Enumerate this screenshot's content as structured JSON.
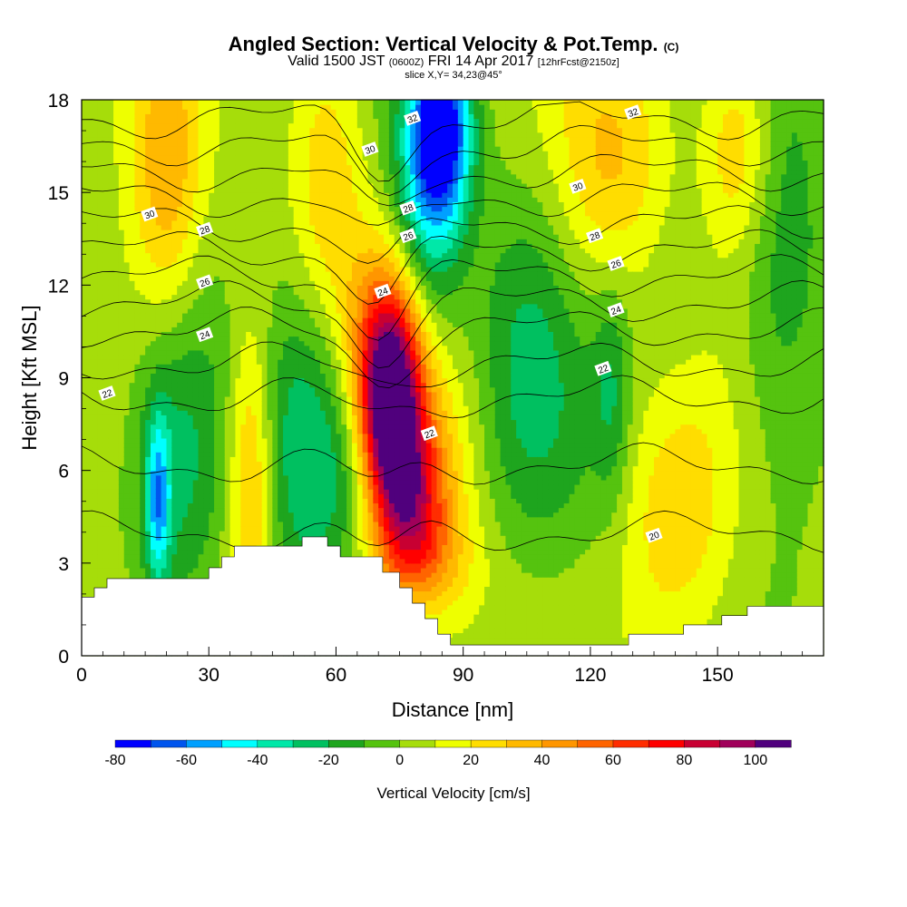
{
  "header": {
    "title_main": "Angled Section: Vertical Velocity & Pot.Temp.",
    "title_suffix": "(C)",
    "valid_prefix": "Valid 1500 JST",
    "valid_utc": "(0600Z)",
    "valid_date": "FRI 14 Apr 2017",
    "forecast": "[12hrFcst@2150z]",
    "slice": "slice X,Y= 34,23@45°"
  },
  "chart_data": {
    "type": "heatmap",
    "xlabel": "Distance [nm]",
    "ylabel": "Height [Kft MSL]",
    "xlim": [
      0,
      175
    ],
    "ylim": [
      0,
      18
    ],
    "x_ticks": [
      0,
      30,
      60,
      90,
      120,
      150
    ],
    "y_ticks": [
      0,
      3,
      6,
      9,
      12,
      15,
      18
    ],
    "colorbar": {
      "title": "Vertical Velocity [cm/s]",
      "levels": [
        -80,
        -70,
        -60,
        -50,
        -40,
        -30,
        -20,
        -10,
        0,
        10,
        20,
        30,
        40,
        50,
        60,
        70,
        80,
        90,
        100,
        110
      ],
      "tick_labels": [
        "-80",
        "-60",
        "-40",
        "-20",
        "0",
        "20",
        "40",
        "60",
        "80",
        "100"
      ],
      "colors": [
        "#0000ff",
        "#0055ee",
        "#00a0ff",
        "#00ffff",
        "#00e8a8",
        "#00c060",
        "#1ea51e",
        "#55c30f",
        "#a6dd0a",
        "#eeff00",
        "#ffdd00",
        "#ffb900",
        "#ff9600",
        "#ff6400",
        "#ff2d00",
        "#ff0000",
        "#c80032",
        "#a0005a",
        "#50007d"
      ]
    },
    "contour_variable": "Potential temperature [C]",
    "contour_labels": [
      {
        "value": "32",
        "x": 78,
        "y": 17.4
      },
      {
        "value": "32",
        "x": 130,
        "y": 17.6
      },
      {
        "value": "30",
        "x": 68,
        "y": 16.4
      },
      {
        "value": "30",
        "x": 16,
        "y": 14.3
      },
      {
        "value": "30",
        "x": 117,
        "y": 15.2
      },
      {
        "value": "28",
        "x": 77,
        "y": 14.5
      },
      {
        "value": "28",
        "x": 29,
        "y": 13.8
      },
      {
        "value": "28",
        "x": 121,
        "y": 13.6
      },
      {
        "value": "26",
        "x": 77,
        "y": 13.6
      },
      {
        "value": "26",
        "x": 126,
        "y": 12.7
      },
      {
        "value": "26",
        "x": 29,
        "y": 12.1
      },
      {
        "value": "24",
        "x": 71,
        "y": 11.8
      },
      {
        "value": "24",
        "x": 126,
        "y": 11.2
      },
      {
        "value": "24",
        "x": 29,
        "y": 10.4
      },
      {
        "value": "22",
        "x": 6,
        "y": 8.5
      },
      {
        "value": "22",
        "x": 123,
        "y": 9.3
      },
      {
        "value": "22",
        "x": 82,
        "y": 7.2
      },
      {
        "value": "20",
        "x": 135,
        "y": 3.9
      }
    ],
    "fields": [
      {
        "x": 73,
        "y": 8.0,
        "v": 105,
        "sx": 5,
        "sy": 2.4
      },
      {
        "x": 70,
        "y": 10.0,
        "v": 40,
        "sx": 7,
        "sy": 2.5
      },
      {
        "x": 78,
        "y": 5.0,
        "v": 55,
        "sx": 6,
        "sy": 1.8
      },
      {
        "x": 84,
        "y": 6.5,
        "v": 20,
        "sx": 8,
        "sy": 3.2
      },
      {
        "x": 78,
        "y": 3.0,
        "v": 25,
        "sx": 10,
        "sy": 1.2
      },
      {
        "x": 85,
        "y": 17.2,
        "v": -70,
        "sx": 5,
        "sy": 2.0
      },
      {
        "x": 82,
        "y": 15.0,
        "v": -45,
        "sx": 6,
        "sy": 3.0
      },
      {
        "x": 55,
        "y": 7.0,
        "v": -38,
        "sx": 11,
        "sy": 3.5
      },
      {
        "x": 22,
        "y": 6.0,
        "v": -28,
        "sx": 8,
        "sy": 4.0
      },
      {
        "x": 18,
        "y": 5.0,
        "v": -45,
        "sx": 2,
        "sy": 2.0
      },
      {
        "x": 40,
        "y": 6.0,
        "v": 40,
        "sx": 4,
        "sy": 3.5
      },
      {
        "x": 20,
        "y": 15.5,
        "v": 35,
        "sx": 6,
        "sy": 3.5
      },
      {
        "x": 58,
        "y": 15.5,
        "v": 25,
        "sx": 6,
        "sy": 3.5
      },
      {
        "x": 125,
        "y": 16.0,
        "v": 28,
        "sx": 10,
        "sy": 3.0
      },
      {
        "x": 155,
        "y": 16.5,
        "v": 30,
        "sx": 6,
        "sy": 2.5
      },
      {
        "x": 140,
        "y": 5.0,
        "v": 30,
        "sx": 10,
        "sy": 3.5
      },
      {
        "x": 115,
        "y": 6.5,
        "v": -12,
        "sx": 15,
        "sy": 3.5
      },
      {
        "x": 125,
        "y": 8.5,
        "v": -20,
        "sx": 3,
        "sy": 2.5
      },
      {
        "x": 105,
        "y": 10.0,
        "v": -18,
        "sx": 8,
        "sy": 4.0
      },
      {
        "x": 165,
        "y": 13.0,
        "v": -22,
        "sx": 8,
        "sy": 5.0
      },
      {
        "x": 140,
        "y": 10.5,
        "v": -10,
        "sx": 8,
        "sy": 4.0
      },
      {
        "x": 10,
        "y": 9.0,
        "v": 8,
        "sx": 10,
        "sy": 3.0
      }
    ],
    "terrain_kft": [
      [
        0,
        1.9
      ],
      [
        3,
        1.9
      ],
      [
        3,
        2.2
      ],
      [
        6,
        2.2
      ],
      [
        6,
        2.5
      ],
      [
        30,
        2.5
      ],
      [
        30,
        2.85
      ],
      [
        33,
        2.85
      ],
      [
        33,
        3.2
      ],
      [
        36,
        3.2
      ],
      [
        36,
        3.55
      ],
      [
        52,
        3.55
      ],
      [
        52,
        3.85
      ],
      [
        58,
        3.85
      ],
      [
        58,
        3.55
      ],
      [
        61,
        3.55
      ],
      [
        61,
        3.2
      ],
      [
        71,
        3.2
      ],
      [
        71,
        2.7
      ],
      [
        75,
        2.7
      ],
      [
        75,
        2.2
      ],
      [
        78,
        2.2
      ],
      [
        78,
        1.7
      ],
      [
        81,
        1.7
      ],
      [
        81,
        1.2
      ],
      [
        84,
        1.2
      ],
      [
        84,
        0.7
      ],
      [
        87,
        0.7
      ],
      [
        87,
        0.35
      ],
      [
        129,
        0.35
      ],
      [
        129,
        0.7
      ],
      [
        142,
        0.7
      ],
      [
        142,
        1.0
      ],
      [
        151,
        1.0
      ],
      [
        151,
        1.3
      ],
      [
        157,
        1.3
      ],
      [
        157,
        1.6
      ],
      [
        175,
        1.6
      ]
    ]
  }
}
